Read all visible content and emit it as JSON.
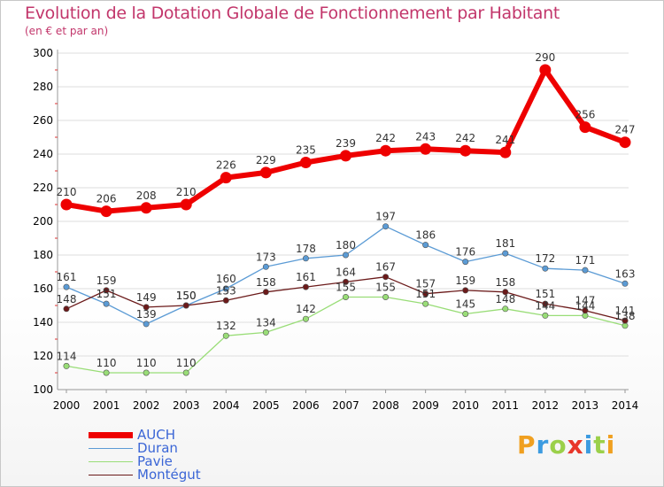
{
  "header": {
    "title": "Evolution de la Dotation Globale de Fonctionnement par Habitant",
    "subtitle": "(en € et par an)"
  },
  "logo": {
    "text": "Proxiti"
  },
  "chart_data": {
    "type": "line",
    "title": "Evolution de la Dotation Globale de Fonctionnement par Habitant",
    "subtitle": "(en € et par an)",
    "xlabel": "",
    "ylabel": "",
    "x": [
      "2000",
      "2001",
      "2002",
      "2003",
      "2004",
      "2005",
      "2006",
      "2007",
      "2008",
      "2009",
      "2010",
      "2011",
      "2012",
      "2013",
      "2014"
    ],
    "ylim": [
      100,
      300
    ],
    "yticks": [
      100,
      120,
      140,
      160,
      180,
      200,
      220,
      240,
      260,
      280,
      300
    ],
    "legend_position": "bottom-left",
    "series": [
      {
        "name": "AUCH",
        "color": "#ee0000",
        "values": [
          210,
          206,
          208,
          210,
          226,
          229,
          235,
          239,
          242,
          243,
          242,
          241,
          290,
          256,
          247
        ]
      },
      {
        "name": "Duran",
        "color": "#5b9bd5",
        "values": [
          161,
          151,
          139,
          150,
          160,
          173,
          178,
          180,
          197,
          186,
          176,
          181,
          172,
          171,
          163
        ]
      },
      {
        "name": "Pavie",
        "color": "#99dd77",
        "values": [
          114,
          110,
          110,
          110,
          132,
          134,
          142,
          155,
          155,
          151,
          145,
          148,
          144,
          144,
          138
        ]
      },
      {
        "name": "Montégut",
        "color": "#6b1a1a",
        "values": [
          148,
          159,
          149,
          150,
          153,
          158,
          161,
          164,
          167,
          157,
          159,
          158,
          151,
          147,
          141
        ]
      }
    ]
  }
}
